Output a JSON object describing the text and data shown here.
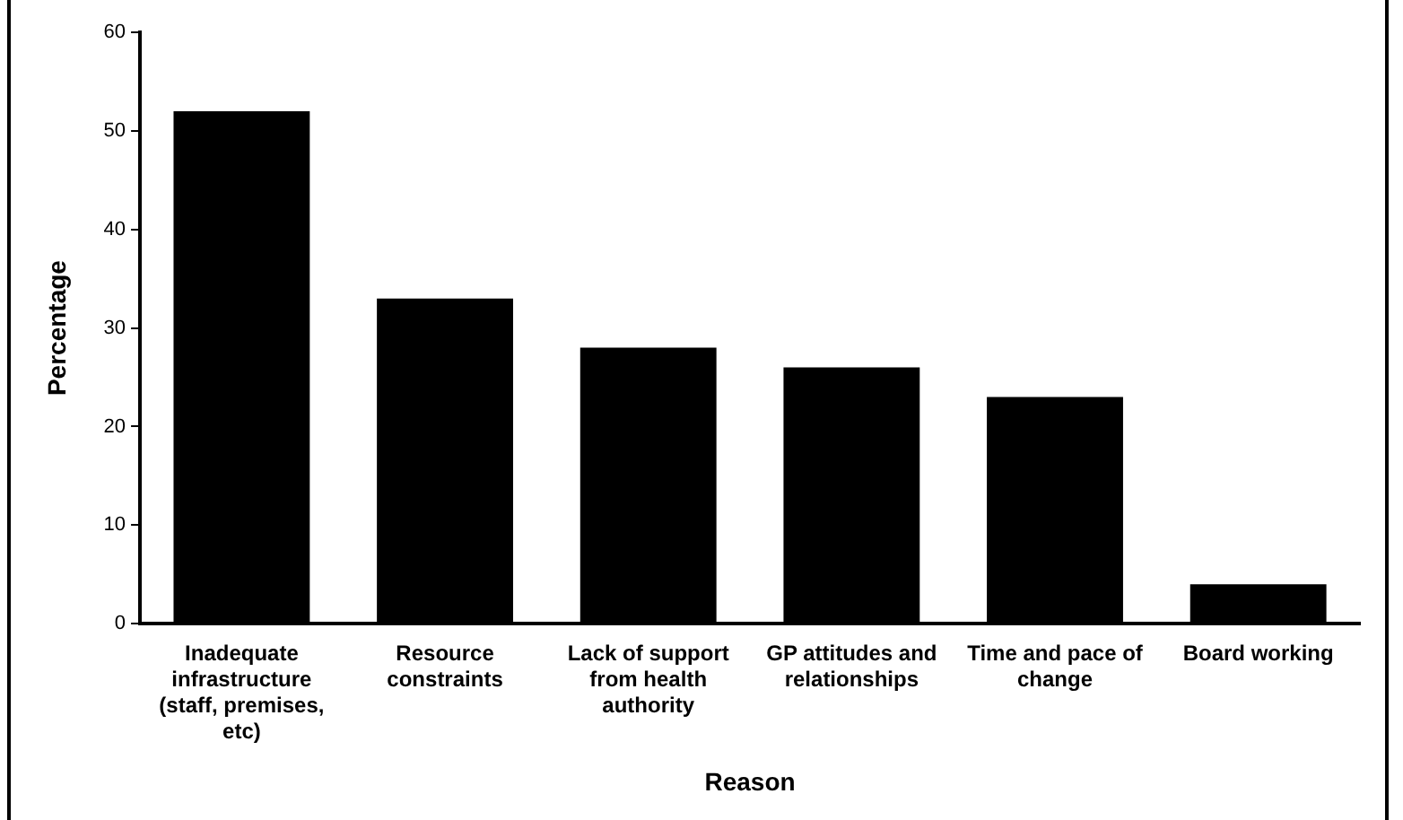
{
  "chart_data": {
    "type": "bar",
    "xlabel": "Reason",
    "ylabel": "Percentage",
    "categories": [
      "Inadequate infrastructure (staff, premises, etc)",
      "Resource constraints",
      "Lack of support from health authority",
      "GP attitudes and relationships",
      "Time and pace of change",
      "Board working"
    ],
    "values": [
      52,
      33,
      28,
      26,
      23,
      4
    ],
    "color": "#000000",
    "ylim": [
      0,
      60
    ],
    "yticks": [
      0,
      10,
      20,
      30,
      40,
      50,
      60
    ],
    "grid": false,
    "legend": false
  }
}
